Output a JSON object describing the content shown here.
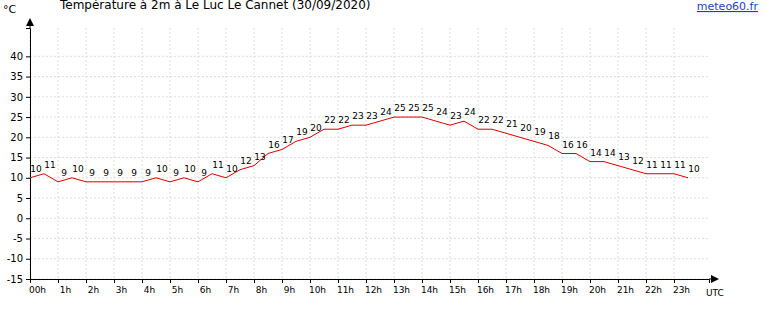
{
  "chart_data": {
    "type": "line",
    "title": "Température à 2m à Le Luc Le Cannet (30/09/2020)",
    "source": "meteo60.fr",
    "y_label": "°C",
    "x_label": "UTC",
    "x": [
      0,
      0.5,
      1,
      1.5,
      2,
      2.5,
      3,
      3.5,
      4,
      4.5,
      5,
      5.5,
      6,
      6.5,
      7,
      7.5,
      8,
      8.5,
      9,
      9.5,
      10,
      10.5,
      11,
      11.5,
      12,
      12.5,
      13,
      13.5,
      14,
      14.5,
      15,
      15.5,
      16,
      16.5,
      17,
      17.5,
      18,
      18.5,
      19,
      19.5,
      20,
      20.5,
      21,
      21.5,
      22,
      22.5,
      23,
      23.5
    ],
    "values": [
      10,
      11,
      9,
      10,
      9,
      9,
      9,
      9,
      9,
      10,
      9,
      10,
      9,
      11,
      10,
      12,
      13,
      16,
      17,
      19,
      20,
      22,
      22,
      23,
      23,
      24,
      25,
      25,
      25,
      24,
      23,
      24,
      22,
      22,
      21,
      20,
      19,
      18,
      16,
      16,
      14,
      14,
      13,
      12,
      11,
      11,
      11,
      10
    ],
    "color": "#dd0000",
    "data_labels": true,
    "grid": true,
    "xlim": [
      0,
      24.25
    ],
    "xticks": [
      {
        "value": 0,
        "label": "00h"
      },
      {
        "value": 1,
        "label": "1h"
      },
      {
        "value": 2,
        "label": "2h"
      },
      {
        "value": 3,
        "label": "3h"
      },
      {
        "value": 4,
        "label": "4h"
      },
      {
        "value": 5,
        "label": "5h"
      },
      {
        "value": 6,
        "label": "6h"
      },
      {
        "value": 7,
        "label": "7h"
      },
      {
        "value": 8,
        "label": "8h"
      },
      {
        "value": 9,
        "label": "9h"
      },
      {
        "value": 10,
        "label": "10h"
      },
      {
        "value": 11,
        "label": "11h"
      },
      {
        "value": 12,
        "label": "12h"
      },
      {
        "value": 13,
        "label": "13h"
      },
      {
        "value": 14,
        "label": "14h"
      },
      {
        "value": 15,
        "label": "15h"
      },
      {
        "value": 16,
        "label": "16h"
      },
      {
        "value": 17,
        "label": "17h"
      },
      {
        "value": 18,
        "label": "18h"
      },
      {
        "value": 19,
        "label": "19h"
      },
      {
        "value": 20,
        "label": "20h"
      },
      {
        "value": 21,
        "label": "21h"
      },
      {
        "value": 22,
        "label": "22h"
      },
      {
        "value": 23,
        "label": "23h"
      }
    ],
    "ylim": [
      -15,
      47
    ],
    "yticks": [
      -15,
      -10,
      -5,
      0,
      5,
      10,
      15,
      20,
      25,
      30,
      35,
      40
    ]
  }
}
